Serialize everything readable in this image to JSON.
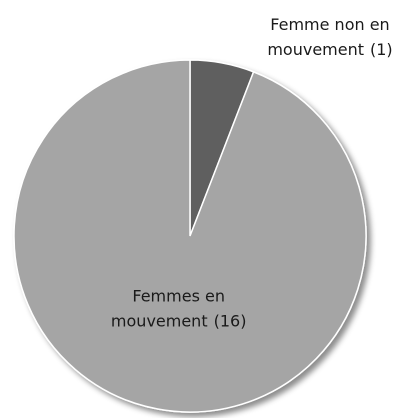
{
  "chart_data": {
    "type": "pie",
    "categories": [
      "Femme non en mouvement",
      "Femmes en mouvement"
    ],
    "values": [
      1,
      16
    ],
    "value_labels": [
      "(1)",
      "(16)"
    ],
    "colors": [
      "#5e5e5e",
      "#a5a5a5"
    ]
  }
}
